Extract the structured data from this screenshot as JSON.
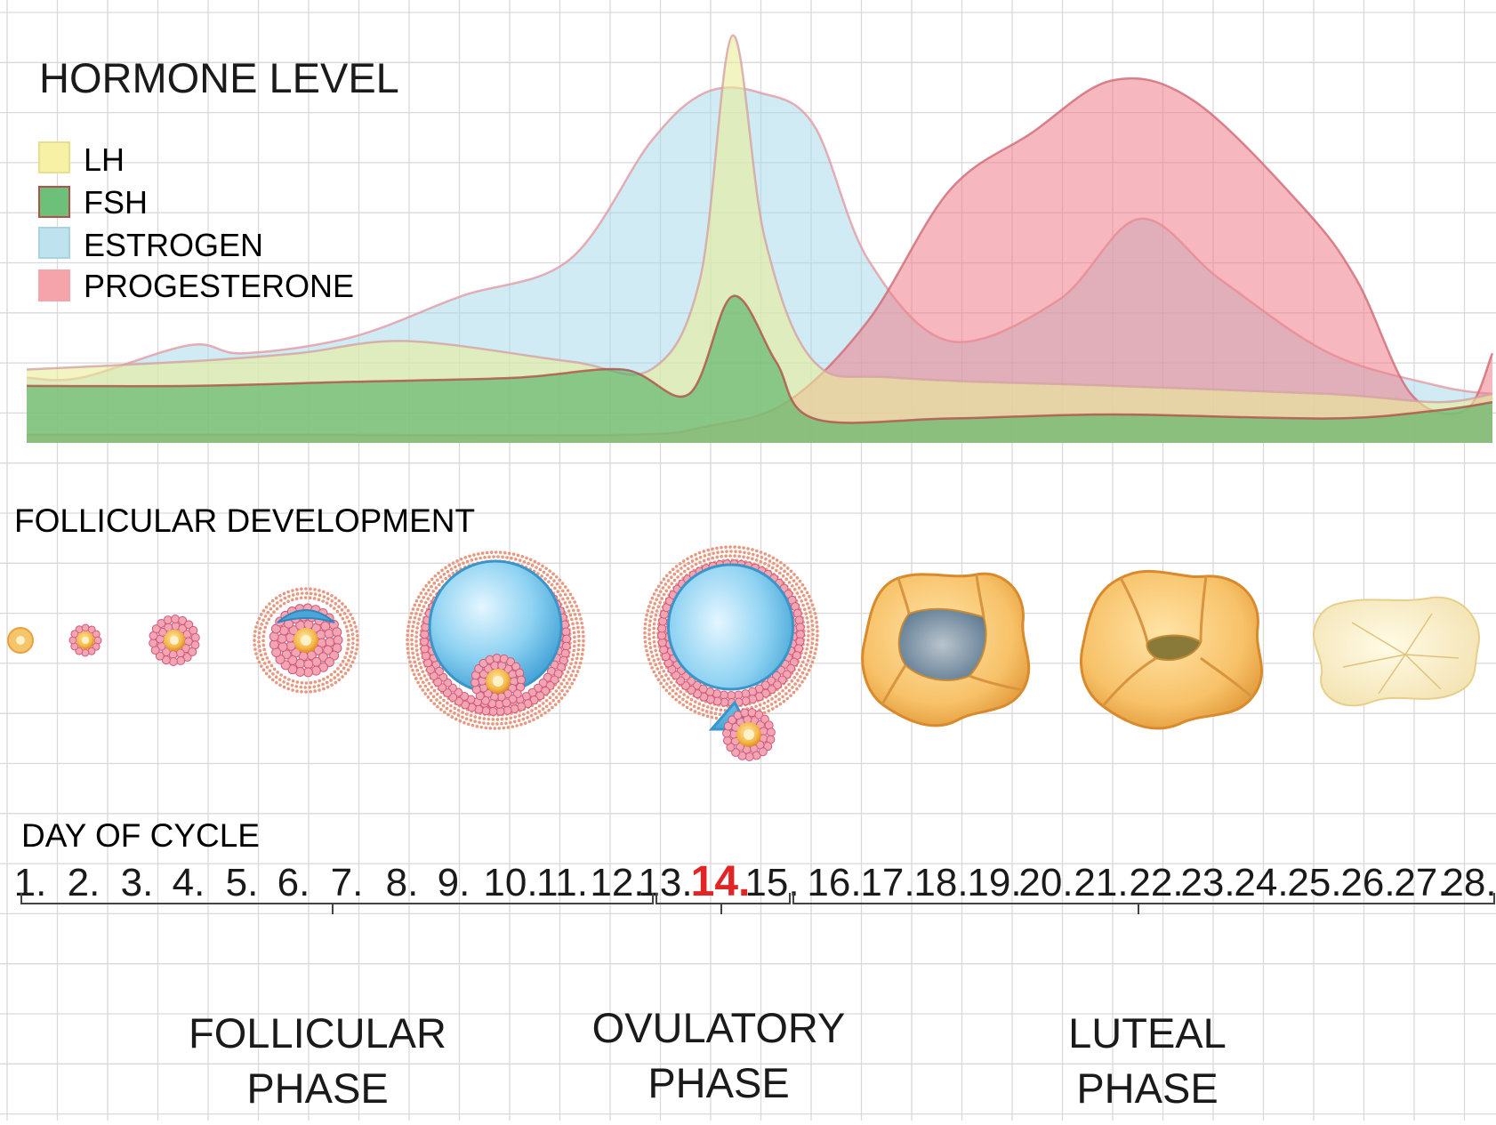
{
  "titles": {
    "hormone_level": "HORMONE LEVEL",
    "follicular_development": "FOLLICULAR DEVELOPMENT",
    "day_of_cycle": "DAY OF CYCLE"
  },
  "legend": [
    {
      "key": "lh",
      "label": "LH",
      "color": "#f7f1a6",
      "border": "#e8df8a"
    },
    {
      "key": "fsh",
      "label": "FSH",
      "color": "#6cc07a",
      "border": "#b2504a"
    },
    {
      "key": "estrogen",
      "label": "ESTROGEN",
      "color": "#bfe3ee",
      "border": "#a9d3e2"
    },
    {
      "key": "progesterone",
      "label": "PROGESTERONE",
      "color": "#f5a4ab",
      "border": "#f5a4ab"
    }
  ],
  "days": [
    "1.",
    "2.",
    "3.",
    "4.",
    "5.",
    "6.",
    "7.",
    "8.",
    "9.",
    "10.",
    "11.",
    "12.",
    "13.",
    "14.",
    "15.",
    "16.",
    "17.",
    "18.",
    "19.",
    "20.",
    "21.",
    "22.",
    "23.",
    "24.",
    "25.",
    "26.",
    "27.",
    "28."
  ],
  "highlight_day": "14.",
  "highlight_color": "#e32424",
  "phases": [
    {
      "line1": "FOLLICULAR",
      "line2": "PHASE"
    },
    {
      "line1": "OVULATORY",
      "line2": "PHASE"
    },
    {
      "line1": "LUTEAL",
      "line2": "PHASE"
    }
  ],
  "chart_data": {
    "type": "area",
    "series": [
      {
        "name": "LH",
        "points": [
          [
            1,
            0.18
          ],
          [
            4,
            0.2
          ],
          [
            6,
            0.22
          ],
          [
            8,
            0.25
          ],
          [
            11,
            0.2
          ],
          [
            12.5,
            0.18
          ],
          [
            13.4,
            0.4
          ],
          [
            14,
            1.0
          ],
          [
            14.6,
            0.5
          ],
          [
            15.5,
            0.2
          ],
          [
            17,
            0.16
          ],
          [
            21,
            0.14
          ],
          [
            25,
            0.12
          ],
          [
            27,
            0.1
          ],
          [
            28,
            0.12
          ]
        ]
      },
      {
        "name": "FSH",
        "points": [
          [
            1,
            0.14
          ],
          [
            4,
            0.14
          ],
          [
            7,
            0.15
          ],
          [
            10,
            0.16
          ],
          [
            12,
            0.18
          ],
          [
            13.2,
            0.12
          ],
          [
            14,
            0.36
          ],
          [
            14.8,
            0.2
          ],
          [
            15.5,
            0.06
          ],
          [
            18,
            0.06
          ],
          [
            21,
            0.07
          ],
          [
            25,
            0.06
          ],
          [
            27,
            0.08
          ],
          [
            28,
            0.1
          ]
        ]
      },
      {
        "name": "ESTROGEN",
        "points": [
          [
            1,
            0.16
          ],
          [
            2,
            0.16
          ],
          [
            4,
            0.24
          ],
          [
            5,
            0.22
          ],
          [
            7,
            0.26
          ],
          [
            9,
            0.36
          ],
          [
            11,
            0.45
          ],
          [
            12.5,
            0.74
          ],
          [
            13.5,
            0.86
          ],
          [
            14.5,
            0.86
          ],
          [
            15.5,
            0.78
          ],
          [
            16.5,
            0.45
          ],
          [
            18,
            0.25
          ],
          [
            20,
            0.35
          ],
          [
            21.5,
            0.55
          ],
          [
            23,
            0.4
          ],
          [
            25,
            0.22
          ],
          [
            27,
            0.14
          ],
          [
            28,
            0.12
          ]
        ]
      },
      {
        "name": "PROGESTERONE",
        "points": [
          [
            1,
            0.02
          ],
          [
            6,
            0.02
          ],
          [
            12,
            0.02
          ],
          [
            13.5,
            0.04
          ],
          [
            15,
            0.1
          ],
          [
            16.5,
            0.3
          ],
          [
            18,
            0.62
          ],
          [
            19.5,
            0.76
          ],
          [
            21,
            0.89
          ],
          [
            22.5,
            0.84
          ],
          [
            24.5,
            0.58
          ],
          [
            25.5,
            0.4
          ],
          [
            26.5,
            0.12
          ],
          [
            27.5,
            0.08
          ],
          [
            28,
            0.22
          ]
        ]
      }
    ],
    "ylim": [
      0,
      1
    ],
    "xlim": [
      1,
      28
    ],
    "xlabel": "DAY OF CYCLE",
    "grid": true
  }
}
